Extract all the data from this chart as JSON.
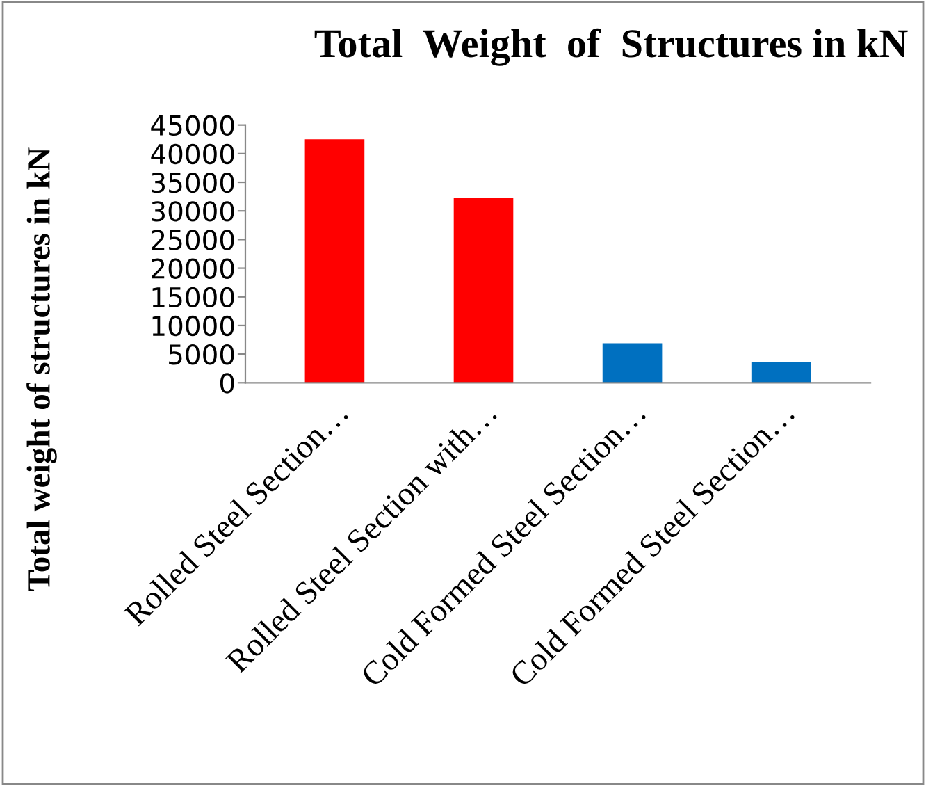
{
  "chart_data": {
    "type": "bar",
    "title": "Total  Weight  of  Structures in kN",
    "ylabel": "Total weight of structures in kN",
    "categories": [
      "Rolled Steel Section…",
      "Rolled Steel Section with…",
      "Cold Formed Steel Section…",
      "Cold Formed Steel Section…"
    ],
    "values": [
      42500,
      32300,
      6900,
      3600
    ],
    "colors": [
      "#ff0000",
      "#ff0000",
      "#0070c0",
      "#0070c0"
    ],
    "ylim": [
      0,
      45000
    ],
    "yticks": [
      0,
      5000,
      10000,
      15000,
      20000,
      25000,
      30000,
      35000,
      40000,
      45000
    ],
    "grid": false,
    "legend": false
  }
}
